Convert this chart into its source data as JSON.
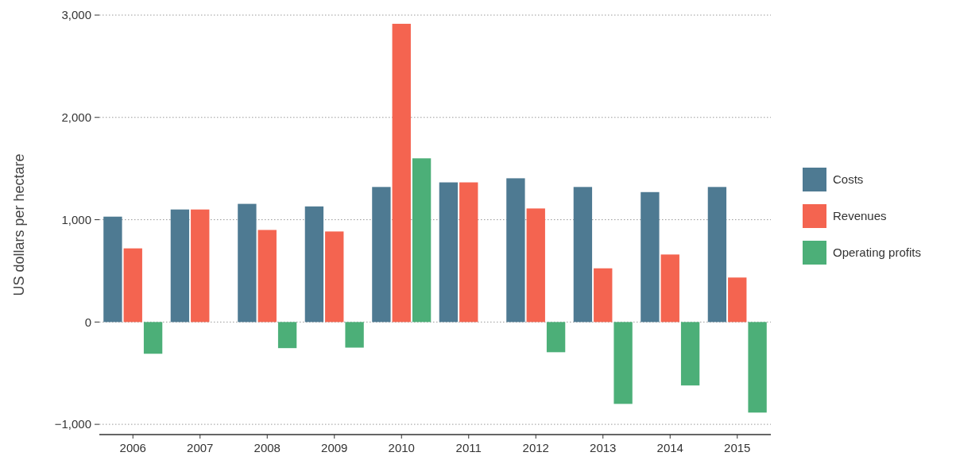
{
  "chart_data": {
    "type": "bar",
    "ylabel": "US dollars per hectare",
    "categories": [
      "2006",
      "2007",
      "2008",
      "2009",
      "2010",
      "2011",
      "2012",
      "2013",
      "2014",
      "2015"
    ],
    "series": [
      {
        "name": "Costs",
        "color": "#4e7a92",
        "values": [
          1030,
          1100,
          1155,
          1130,
          1320,
          1365,
          1405,
          1320,
          1270,
          1320
        ]
      },
      {
        "name": "Revenues",
        "color": "#f46450",
        "values": [
          720,
          1100,
          900,
          885,
          2915,
          1365,
          1110,
          525,
          660,
          435
        ]
      },
      {
        "name": "Operating profits",
        "color": "#4caf78",
        "values": [
          -310,
          0,
          -255,
          -250,
          1600,
          0,
          -295,
          -800,
          -620,
          -885
        ]
      }
    ],
    "ylim": [
      -1100,
      3000
    ],
    "yticks": [
      {
        "value": -1000,
        "label": "−1,000"
      },
      {
        "value": 0,
        "label": "0"
      },
      {
        "value": 1000,
        "label": "1,000"
      },
      {
        "value": 2000,
        "label": "2,000"
      },
      {
        "value": 3000,
        "label": "3,000"
      }
    ],
    "grid": "y",
    "legend": "right"
  }
}
